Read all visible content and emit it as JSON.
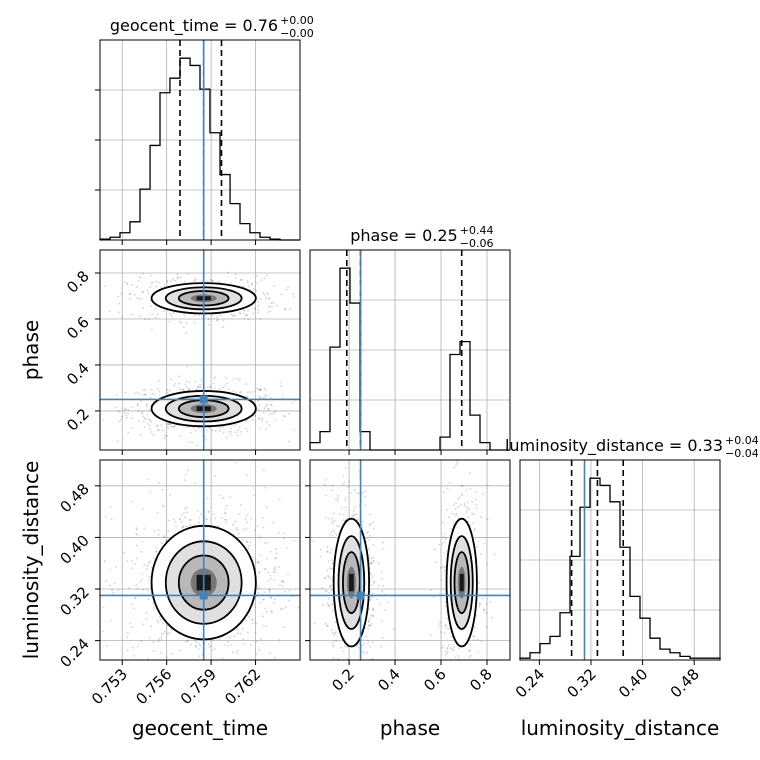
{
  "chart_data": {
    "type": "corner",
    "parameters": [
      "geocent_time",
      "phase",
      "luminosity_distance"
    ],
    "truth": {
      "geocent_time": 0.7585,
      "phase": 0.25,
      "luminosity_distance": 0.31
    },
    "titles": [
      {
        "param": "geocent_time",
        "label": "geocent_time = 0.76",
        "upper": "+0.00",
        "lower": "−0.00"
      },
      {
        "param": "phase",
        "label": "phase = 0.25",
        "upper": "+0.44",
        "lower": "−0.06"
      },
      {
        "param": "luminosity_distance",
        "label": "luminosity_distance = 0.33",
        "upper": "+0.04",
        "lower": "−0.04"
      }
    ],
    "axis_labels": {
      "geocent_time": "geocent_time",
      "phase": "phase",
      "luminosity_distance": "luminosity_distance"
    },
    "ticks": {
      "geocent_time": [
        "0.753",
        "0.756",
        "0.759",
        "0.762"
      ],
      "phase": [
        "0.2",
        "0.4",
        "0.6",
        "0.8"
      ],
      "luminosity_distance": [
        "0.24",
        "0.32",
        "0.40",
        "0.48"
      ]
    },
    "ranges": {
      "geocent_time": [
        0.7515,
        0.765
      ],
      "phase": [
        0.03,
        0.9
      ],
      "luminosity_distance": [
        0.21,
        0.52
      ]
    },
    "quantiles": {
      "geocent_time": [
        0.7569,
        0.7585,
        0.7597
      ],
      "phase": [
        0.19,
        0.25,
        0.69
      ],
      "luminosity_distance": [
        0.29,
        0.33,
        0.37
      ]
    },
    "histograms": {
      "geocent_time": {
        "edges": [
          0.7515,
          0.75218,
          0.75285,
          0.75352,
          0.7542,
          0.75488,
          0.75555,
          0.75622,
          0.7569,
          0.75758,
          0.75825,
          0.75892,
          0.7596,
          0.76028,
          0.76095,
          0.76162,
          0.7623,
          0.76298,
          0.76365,
          0.76432,
          0.765
        ],
        "counts": [
          0.5,
          1.5,
          4,
          10,
          28,
          52,
          81,
          89,
          100,
          96,
          83,
          59,
          36,
          20,
          9,
          4,
          1.5,
          0.5,
          0,
          0
        ]
      },
      "phase": {
        "edges": [
          0.03,
          0.0735,
          0.117,
          0.1605,
          0.204,
          0.2475,
          0.291,
          0.3345,
          0.378,
          0.4215,
          0.465,
          0.5085,
          0.552,
          0.5955,
          0.639,
          0.6825,
          0.726,
          0.7695,
          0.813,
          0.8565,
          0.9
        ],
        "counts": [
          4,
          10,
          56,
          99,
          80,
          10,
          0,
          0,
          0,
          0,
          0,
          0,
          0,
          7,
          52,
          59,
          19,
          4,
          0,
          0
        ]
      },
      "luminosity_distance": {
        "edges": [
          0.21,
          0.2255,
          0.241,
          0.2565,
          0.272,
          0.2875,
          0.303,
          0.3185,
          0.334,
          0.3495,
          0.365,
          0.3805,
          0.396,
          0.4115,
          0.427,
          0.4425,
          0.458,
          0.4735,
          0.489,
          0.5045,
          0.52
        ],
        "counts": [
          1,
          4,
          9,
          13,
          26,
          57,
          84,
          100,
          96,
          87,
          62,
          35,
          23,
          12,
          6,
          4,
          2,
          1,
          1,
          1
        ]
      }
    }
  }
}
